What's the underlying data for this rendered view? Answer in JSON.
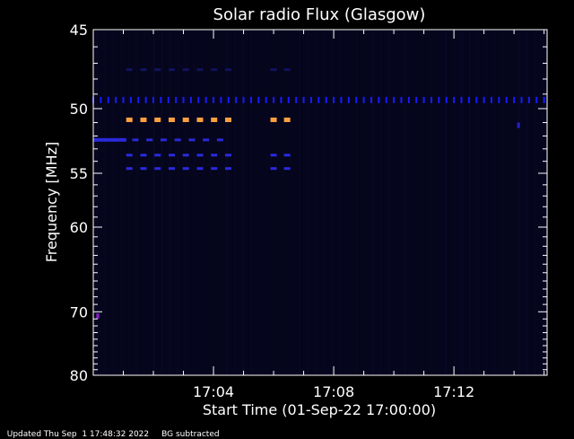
{
  "chart_data": {
    "type": "heatmap",
    "title": "Solar radio Flux (Glasgow)",
    "xlabel": "Start Time (01-Sep-22 17:00:00)",
    "ylabel": "Frequency [MHz]",
    "x_unit": "minutes after 17:00:00",
    "xlim": [
      0,
      15.1
    ],
    "ylim": [
      45,
      80
    ],
    "y_scale": "reciprocal",
    "x_ticks": [
      {
        "value": 4,
        "label": "17:04"
      },
      {
        "value": 8,
        "label": "17:08"
      },
      {
        "value": 12,
        "label": "17:12"
      }
    ],
    "y_ticks": [
      {
        "value": 45,
        "label": "45"
      },
      {
        "value": 50,
        "label": "50"
      },
      {
        "value": 55,
        "label": "55"
      },
      {
        "value": 60,
        "label": "60"
      },
      {
        "value": 70,
        "label": "70"
      },
      {
        "value": 80,
        "label": "80"
      }
    ],
    "background_color": "#05051c",
    "features": [
      {
        "freq": 49.4,
        "t_start": 0.0,
        "t_end": 15.1,
        "step": 0.25,
        "color": "#1a1aff",
        "kind": "ticks"
      },
      {
        "freq": 50.8,
        "t_start": 1.2,
        "t_end": 4.9,
        "step": 0.47,
        "color": "#ffa040",
        "kind": "dashes"
      },
      {
        "freq": 50.8,
        "t_start": 6.0,
        "t_end": 6.6,
        "step": 0.45,
        "color": "#ffa040",
        "kind": "dashes"
      },
      {
        "freq": 52.3,
        "t_start": 0.0,
        "t_end": 1.1,
        "step": 0.0,
        "color": "#2a2ad8",
        "kind": "solid"
      },
      {
        "freq": 52.3,
        "t_start": 1.4,
        "t_end": 4.6,
        "step": 0.47,
        "color": "#2a2ad8",
        "kind": "dashes"
      },
      {
        "freq": 53.5,
        "t_start": 1.2,
        "t_end": 4.9,
        "step": 0.47,
        "color": "#2a2ae0",
        "kind": "dashes"
      },
      {
        "freq": 53.5,
        "t_start": 6.0,
        "t_end": 6.6,
        "step": 0.45,
        "color": "#2a2ae0",
        "kind": "dashes"
      },
      {
        "freq": 54.6,
        "t_start": 1.2,
        "t_end": 4.9,
        "step": 0.47,
        "color": "#2a2ae0",
        "kind": "dashes"
      },
      {
        "freq": 54.6,
        "t_start": 6.0,
        "t_end": 6.6,
        "step": 0.45,
        "color": "#2a2ae0",
        "kind": "dashes"
      },
      {
        "freq": 47.4,
        "t_start": 1.2,
        "t_end": 4.9,
        "step": 0.47,
        "color": "#121260",
        "kind": "dashes"
      },
      {
        "freq": 47.4,
        "t_start": 6.0,
        "t_end": 6.6,
        "step": 0.45,
        "color": "#121260",
        "kind": "dashes"
      },
      {
        "freq": 70.6,
        "t_start": 0.1,
        "t_end": 0.2,
        "step": 0.0,
        "color": "#8020c0",
        "kind": "solid"
      },
      {
        "freq": 51.2,
        "t_start": 14.1,
        "t_end": 14.2,
        "step": 0.0,
        "color": "#2020c0",
        "kind": "solid"
      }
    ]
  },
  "footer": {
    "updated": "Updated Thu Sep  1 17:48:32 2022",
    "note": "BG subtracted"
  }
}
